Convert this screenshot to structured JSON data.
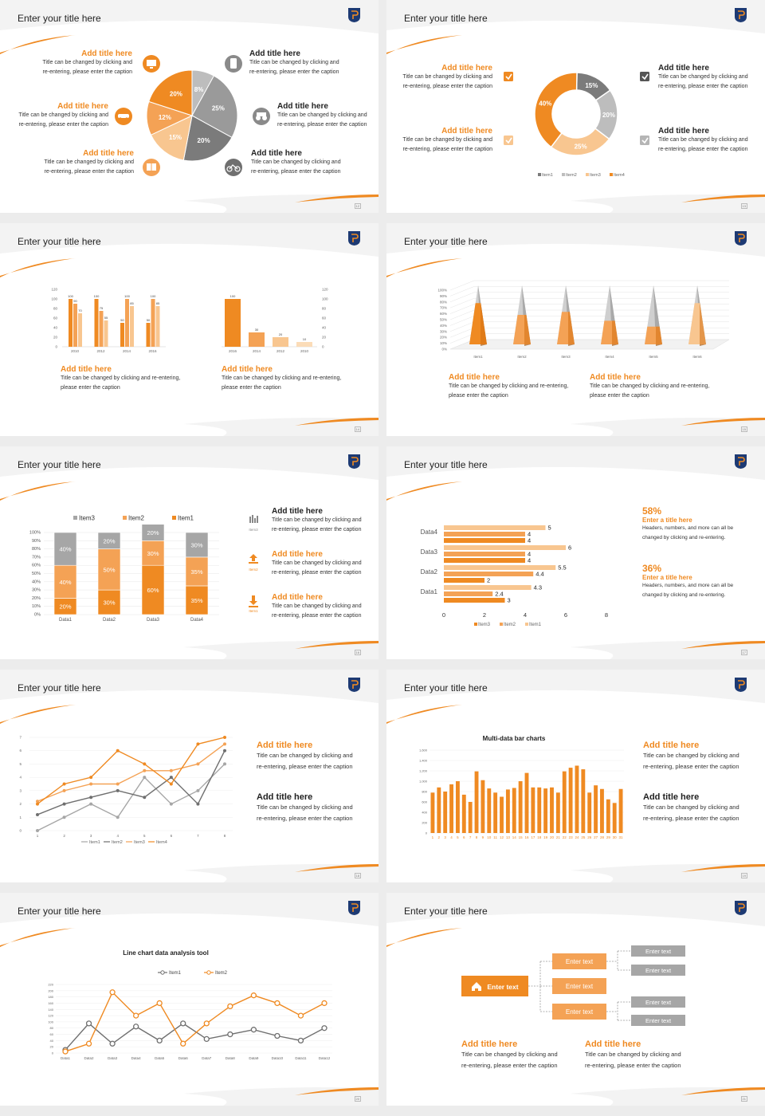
{
  "slides": [
    {
      "title": "Enter your title here",
      "page": "12",
      "pie_labels": [
        "8%",
        "25%",
        "20%",
        "15%",
        "12%",
        "20%"
      ],
      "blocks": [
        {
          "title": "Add title here",
          "caption1": "Title can be changed by clicking and",
          "caption2": "re-entering, please enter the caption"
        },
        {
          "title": "Add title here",
          "caption1": "Title can be changed by clicking and",
          "caption2": "re-entering, please enter the caption"
        },
        {
          "title": "Add title here",
          "caption1": "Title can be changed by clicking and",
          "caption2": "re-entering, please enter the caption"
        },
        {
          "title": "Add title here",
          "caption1": "Title can be changed by clicking and",
          "caption2": "re-entering, please enter the caption"
        },
        {
          "title": "Add title here",
          "caption1": "Title can be changed by clicking and",
          "caption2": "re-entering, please enter the caption"
        },
        {
          "title": "Add title here",
          "caption1": "Title can be changed by clicking and",
          "caption2": "re-entering, please enter the caption"
        }
      ]
    },
    {
      "title": "Enter your title here",
      "page": "13",
      "blocks": [
        {
          "title": "Add title here",
          "caption1": "Title can be changed by clicking and",
          "caption2": "re-entering, please enter the caption"
        },
        {
          "title": "Add title here",
          "caption1": "Title can be changed by clicking and",
          "caption2": "re-entering, please enter the caption"
        },
        {
          "title": "Add title here",
          "caption1": "Title can be changed by clicking and",
          "caption2": "re-entering, please enter the caption"
        },
        {
          "title": "Add title here",
          "caption1": "Title can be changed by clicking and",
          "caption2": "re-entering, please enter the caption"
        }
      ]
    },
    {
      "title": "Enter your title here",
      "page": "14",
      "blocks": [
        {
          "title": "Add title here",
          "caption1": "Title can be changed by clicking and re-entering,",
          "caption2": "please enter the caption"
        },
        {
          "title": "Add title here",
          "caption1": "Title can be changed by clicking and re-entering,",
          "caption2": "please enter the caption"
        }
      ]
    },
    {
      "title": "Enter your title here",
      "page": "15",
      "blocks": [
        {
          "title": "Add title here",
          "caption1": "Title can be changed by clicking and re-entering,",
          "caption2": "please enter the caption"
        },
        {
          "title": "Add title here",
          "caption1": "Title can be changed by clicking and re-entering,",
          "caption2": "please enter the caption"
        }
      ]
    },
    {
      "title": "Enter your title here",
      "page": "16",
      "icon_labels": [
        "Item3",
        "Item2",
        "Item1"
      ],
      "blocks": [
        {
          "title": "Add title here",
          "caption1": "Title can be changed by clicking and",
          "caption2": "re-entering, please enter the caption"
        },
        {
          "title": "Add title here",
          "caption1": "Title can be changed by clicking and",
          "caption2": "re-entering, please enter the caption"
        },
        {
          "title": "Add title here",
          "caption1": "Title can be changed by clicking and",
          "caption2": "re-entering, please enter the caption"
        }
      ]
    },
    {
      "title": "Enter your title here",
      "page": "17",
      "stats": [
        {
          "value": "58%",
          "title": "Enter a title here",
          "caption1": "Headers, numbers, and more can all be",
          "caption2": "changed by clicking and re-entering."
        },
        {
          "value": "36%",
          "title": "Enter a title here",
          "caption1": "Headers, numbers, and more can all be",
          "caption2": "changed by clicking and re-entering."
        }
      ]
    },
    {
      "title": "Enter your title here",
      "page": "18",
      "blocks": [
        {
          "title": "Add title here",
          "caption1": "Title can be changed by clicking and",
          "caption2": "re-entering, please enter the caption"
        },
        {
          "title": "Add title here",
          "caption1": "Title can be changed by clicking and",
          "caption2": "re-entering, please enter the caption"
        }
      ]
    },
    {
      "title": "Enter your title here",
      "page": "19",
      "blocks": [
        {
          "title": "Add title here",
          "caption1": "Title can be changed by clicking and",
          "caption2": "re-entering, please enter the caption"
        },
        {
          "title": "Add title here",
          "caption1": "Title can be changed by clicking and",
          "caption2": "re-entering, please enter the caption"
        }
      ]
    },
    {
      "title": "Enter your title here",
      "page": "20"
    },
    {
      "title": "Enter your title here",
      "page": "21",
      "tree": {
        "root": "Enter text",
        "mid": [
          "Enter text",
          "Enter text",
          "Enter text"
        ],
        "leaves": [
          "Enter text",
          "Enter text",
          "Enter text",
          "Enter text"
        ]
      },
      "blocks": [
        {
          "title": "Add title here",
          "caption1": "Title can be changed by clicking and",
          "caption2": "re-entering, please enter the caption"
        },
        {
          "title": "Add title here",
          "caption1": "Title can be changed by clicking and",
          "caption2": "re-entering, please enter the caption"
        }
      ]
    }
  ],
  "colors": {
    "orange": "#ef8a22",
    "mid_orange": "#f4a255",
    "light_orange": "#f8c690",
    "gray": "#a6a6a6",
    "dark_gray": "#6f6f6f"
  },
  "chart_data": [
    {
      "type": "pie",
      "values": [
        8,
        25,
        20,
        15,
        12,
        20
      ]
    },
    {
      "type": "pie",
      "subtype": "donut",
      "categories": [
        "Item1",
        "Item2",
        "Item3",
        "Item4"
      ],
      "values": [
        15,
        20,
        25,
        40
      ]
    },
    {
      "type": "bar",
      "categories": [
        "2010",
        "2012",
        "2014",
        "2016"
      ],
      "ylim": [
        0,
        120
      ],
      "yticks": [
        "0",
        "20",
        "40",
        "60",
        "80",
        "100",
        "120"
      ],
      "series": [
        {
          "values": [
            100,
            100,
            50,
            50
          ]
        },
        {
          "values": [
            90,
            75,
            100,
            100
          ]
        },
        {
          "values": [
            70,
            55,
            85,
            85
          ]
        }
      ]
    },
    {
      "type": "bar",
      "categories": [
        "2016",
        "2014",
        "2012",
        "2010"
      ],
      "values": [
        100,
        30,
        20,
        10
      ],
      "ylim": [
        0,
        120
      ],
      "yticks": [
        "0",
        "20",
        "40",
        "60",
        "80",
        "100",
        "120"
      ]
    },
    {
      "type": "bar",
      "subtype": "3d-cone",
      "categories": [
        "Item1",
        "Item2",
        "Item3",
        "Item4",
        "Item5",
        "Item6"
      ],
      "values": [
        70,
        50,
        55,
        40,
        30,
        70
      ],
      "ylim": [
        0,
        100
      ],
      "yticks": [
        "0%",
        "10%",
        "20%",
        "30%",
        "40%",
        "50%",
        "60%",
        "70%",
        "80%",
        "90%",
        "100%"
      ]
    },
    {
      "type": "bar",
      "subtype": "stacked-100",
      "categories": [
        "Data1",
        "Data2",
        "Data3",
        "Data4"
      ],
      "series": [
        {
          "name": "Item1",
          "values": [
            20,
            30,
            60,
            35
          ]
        },
        {
          "name": "Item2",
          "values": [
            40,
            50,
            30,
            35
          ]
        },
        {
          "name": "Item3",
          "values": [
            40,
            20,
            20,
            30
          ]
        }
      ],
      "yticks": [
        "0%",
        "10%",
        "20%",
        "30%",
        "40%",
        "50%",
        "60%",
        "70%",
        "80%",
        "90%",
        "100%"
      ],
      "legend": "top"
    },
    {
      "type": "bar",
      "subtype": "horizontal",
      "categories": [
        "Data1",
        "Data2",
        "Data3",
        "Data4"
      ],
      "series": [
        {
          "name": "Item3",
          "values": [
            3,
            2,
            4,
            4
          ]
        },
        {
          "name": "Item2",
          "values": [
            2.4,
            4.4,
            4,
            4
          ]
        },
        {
          "name": "Item1",
          "values": [
            4.3,
            5.5,
            6,
            5
          ]
        }
      ],
      "xlim": [
        0,
        8
      ],
      "xticks": [
        "0",
        "2",
        "4",
        "6",
        "8"
      ]
    },
    {
      "type": "line",
      "x": [
        1,
        2,
        3,
        4,
        5,
        6,
        7,
        8
      ],
      "ylim": [
        0,
        7
      ],
      "series": [
        {
          "name": "Item1",
          "values": [
            0,
            1,
            2,
            1,
            4,
            2,
            3,
            5
          ]
        },
        {
          "name": "Item2",
          "values": [
            1.2,
            2,
            2.5,
            3,
            2.5,
            4,
            2,
            6
          ]
        },
        {
          "name": "Item3",
          "values": [
            2.2,
            3,
            3.5,
            3.5,
            4.5,
            4.5,
            5,
            6.5
          ]
        },
        {
          "name": "Item4",
          "values": [
            2,
            3.5,
            4,
            6,
            5,
            3.5,
            6.5,
            7
          ]
        }
      ]
    },
    {
      "type": "bar",
      "title": "Multi-data bar charts",
      "categories": [
        "1",
        "2",
        "3",
        "4",
        "5",
        "6",
        "7",
        "8",
        "9",
        "10",
        "11",
        "12",
        "13",
        "14",
        "15",
        "16",
        "17",
        "18",
        "19",
        "20",
        "21",
        "22",
        "23",
        "24",
        "25",
        "26",
        "27",
        "28",
        "29",
        "30",
        "31"
      ],
      "values": [
        780,
        880,
        800,
        940,
        1000,
        740,
        600,
        1190,
        1020,
        860,
        780,
        700,
        840,
        870,
        1000,
        1160,
        880,
        880,
        860,
        880,
        780,
        1190,
        1260,
        1300,
        1230,
        780,
        920,
        850,
        650,
        580,
        850
      ],
      "ylim": [
        0,
        1600
      ],
      "yticks": [
        "0",
        "200",
        "400",
        "600",
        "800",
        "1,000",
        "1,200",
        "1,400",
        "1,600"
      ]
    },
    {
      "type": "line",
      "title": "Line chart data analysis tool",
      "categories": [
        "Data1",
        "Data2",
        "Data3",
        "Data4",
        "Data5",
        "Data6",
        "Data7",
        "Data8",
        "Data9",
        "Data10",
        "Data11",
        "Data12"
      ],
      "series": [
        {
          "name": "Item1",
          "values": [
            10,
            95,
            30,
            85,
            40,
            95,
            45,
            60,
            75,
            55,
            40,
            80
          ]
        },
        {
          "name": "Item2",
          "values": [
            5,
            30,
            195,
            120,
            160,
            30,
            95,
            150,
            185,
            160,
            120,
            160
          ]
        }
      ],
      "ylim": [
        0,
        220
      ],
      "yticks": [
        "0",
        "20",
        "40",
        "60",
        "80",
        "100",
        "120",
        "140",
        "160",
        "180",
        "200",
        "220"
      ],
      "legend": "top"
    }
  ]
}
